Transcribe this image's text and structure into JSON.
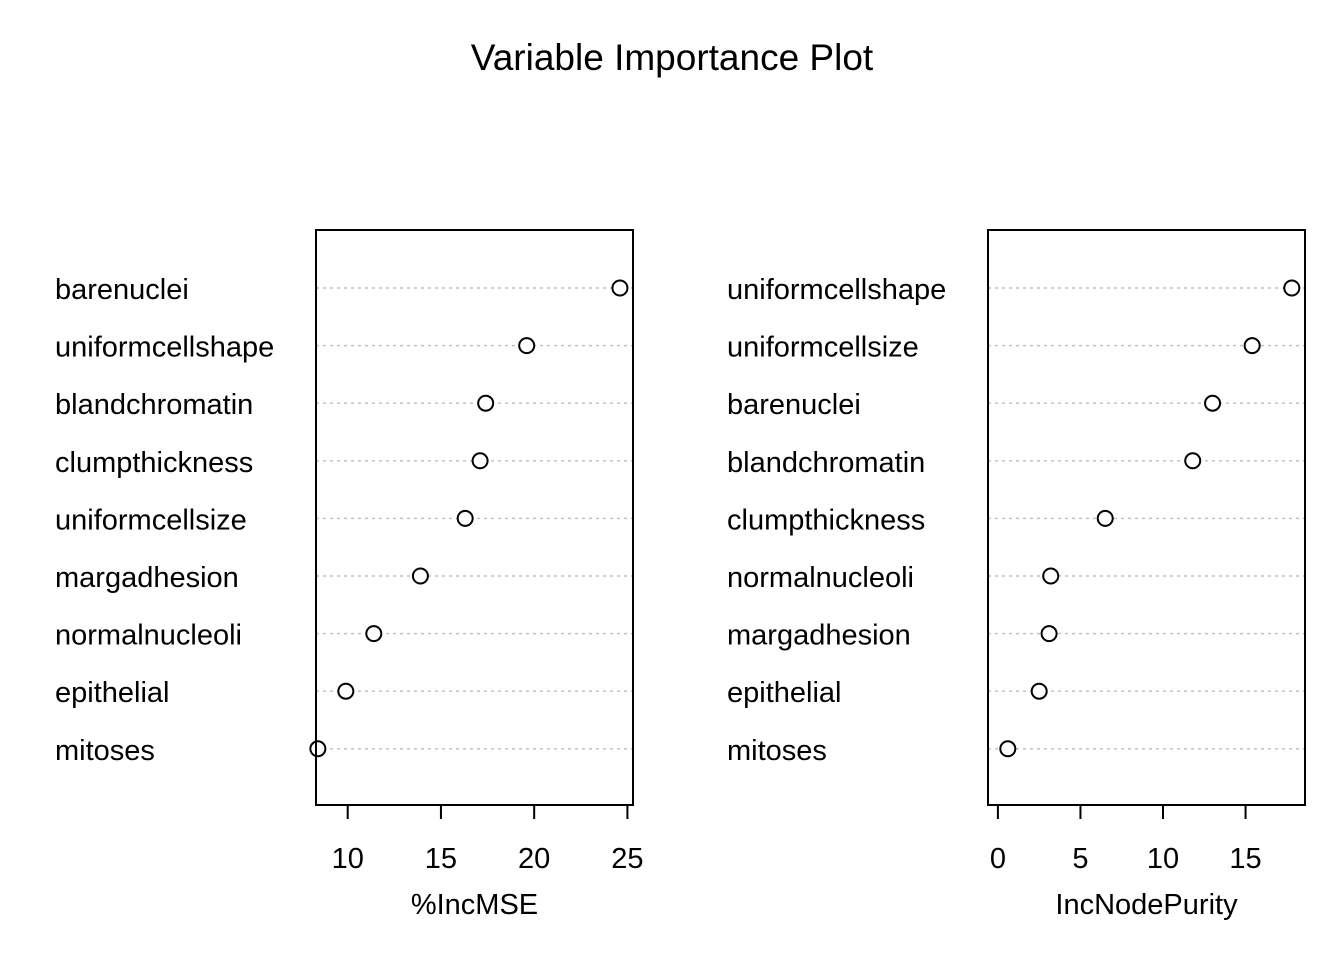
{
  "title": "Variable Importance Plot",
  "chart_data": [
    {
      "type": "scatter",
      "variant": "dotchart",
      "xlabel": "%IncMSE",
      "x_ticks": [
        10,
        15,
        20,
        25
      ],
      "xlim": [
        8.3,
        25.3
      ],
      "categories": [
        "barenuclei",
        "uniformcellshape",
        "blandchromatin",
        "clumpthickness",
        "uniformcellsize",
        "margadhesion",
        "normalnucleoli",
        "epithelial",
        "mitoses"
      ],
      "values": [
        24.6,
        19.6,
        17.4,
        17.1,
        16.3,
        13.9,
        11.4,
        9.9,
        8.4
      ],
      "grid": "dotted horizontal",
      "point_color": "#000000",
      "grid_color": "#bebebe"
    },
    {
      "type": "scatter",
      "variant": "dotchart",
      "xlabel": "IncNodePurity",
      "x_ticks": [
        0,
        5,
        10,
        15
      ],
      "xlim": [
        -0.6,
        18.6
      ],
      "categories": [
        "uniformcellshape",
        "uniformcellsize",
        "barenuclei",
        "blandchromatin",
        "clumpthickness",
        "normalnucleoli",
        "margadhesion",
        "epithelial",
        "mitoses"
      ],
      "values": [
        17.8,
        15.4,
        13.0,
        11.8,
        6.5,
        3.2,
        3.1,
        2.5,
        0.6
      ],
      "grid": "dotted horizontal",
      "point_color": "#000000",
      "grid_color": "#bebebe"
    }
  ]
}
